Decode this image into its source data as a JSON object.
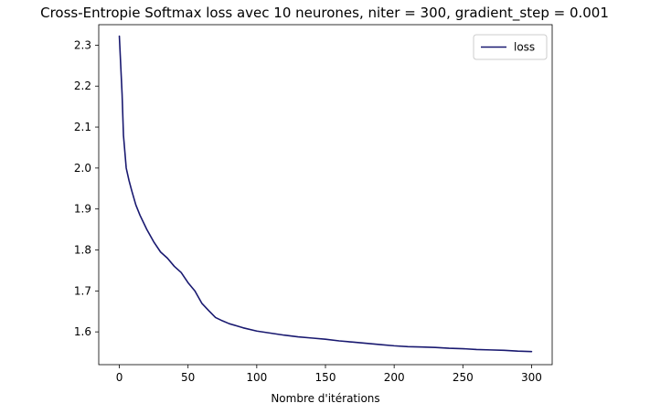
{
  "chart_data": {
    "type": "line",
    "title": "Cross-Entropie Softmax loss avec 10 neurones, niter = 300, gradient_step = 0.001",
    "xlabel": "Nombre d'itérations",
    "ylabel": "",
    "xlim": [
      -15,
      315
    ],
    "ylim": [
      1.52,
      2.35
    ],
    "xticks": [
      0,
      50,
      100,
      150,
      200,
      250,
      300
    ],
    "yticks": [
      1.6,
      1.7,
      1.8,
      1.9,
      2.0,
      2.1,
      2.2,
      2.3
    ],
    "xtick_labels": [
      "0",
      "50",
      "100",
      "150",
      "200",
      "250",
      "300"
    ],
    "ytick_labels": [
      "1.6",
      "1.7",
      "1.8",
      "1.9",
      "2.0",
      "2.1",
      "2.2",
      "2.3"
    ],
    "grid": false,
    "legend": {
      "position": "top-right",
      "entries": [
        "loss"
      ]
    },
    "series": [
      {
        "name": "loss",
        "color": "#191970",
        "x": [
          0,
          2,
          3,
          4,
          5,
          7,
          9,
          12,
          15,
          20,
          25,
          30,
          35,
          40,
          45,
          50,
          55,
          60,
          65,
          70,
          75,
          80,
          85,
          90,
          100,
          110,
          120,
          130,
          140,
          150,
          160,
          170,
          180,
          190,
          200,
          210,
          220,
          230,
          240,
          250,
          260,
          270,
          280,
          290,
          300
        ],
        "y": [
          2.322,
          2.18,
          2.08,
          2.04,
          2.0,
          1.97,
          1.945,
          1.91,
          1.885,
          1.85,
          1.82,
          1.795,
          1.78,
          1.76,
          1.745,
          1.72,
          1.7,
          1.67,
          1.652,
          1.635,
          1.627,
          1.62,
          1.615,
          1.61,
          1.602,
          1.597,
          1.592,
          1.588,
          1.585,
          1.582,
          1.578,
          1.575,
          1.572,
          1.569,
          1.566,
          1.564,
          1.563,
          1.562,
          1.56,
          1.559,
          1.557,
          1.556,
          1.555,
          1.553,
          1.552
        ]
      }
    ]
  }
}
